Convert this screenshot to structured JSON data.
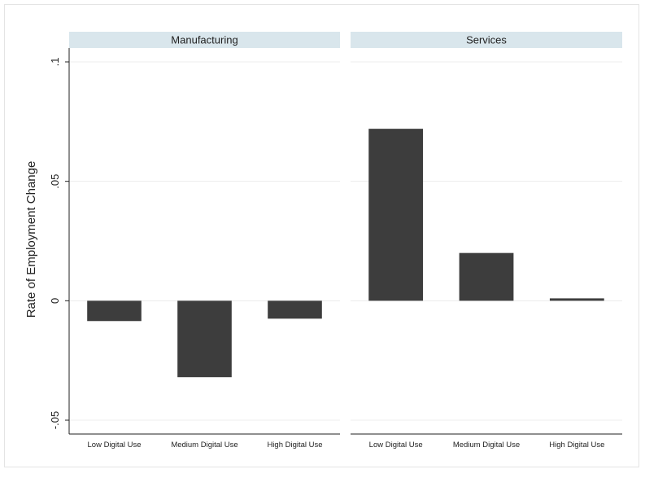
{
  "chart_data": {
    "type": "bar",
    "ylabel": "Rate of Employment Change",
    "ylim": [
      -0.05,
      0.1
    ],
    "yticks": [
      {
        "value": -0.05,
        "label": "-.05"
      },
      {
        "value": 0,
        "label": "0"
      },
      {
        "value": 0.05,
        "label": ".05"
      },
      {
        "value": 0.1,
        "label": ".1"
      }
    ],
    "categories": [
      "Low Digital Use",
      "Medium Digital Use",
      "High Digital Use"
    ],
    "panels": [
      {
        "title": "Manufacturing",
        "values": [
          -0.0085,
          -0.032,
          -0.0075
        ]
      },
      {
        "title": "Services",
        "values": [
          0.072,
          0.02,
          0.001
        ]
      }
    ],
    "bar_color": "#3d3d3d",
    "strip_color": "#d9e6ec",
    "grid": true
  }
}
